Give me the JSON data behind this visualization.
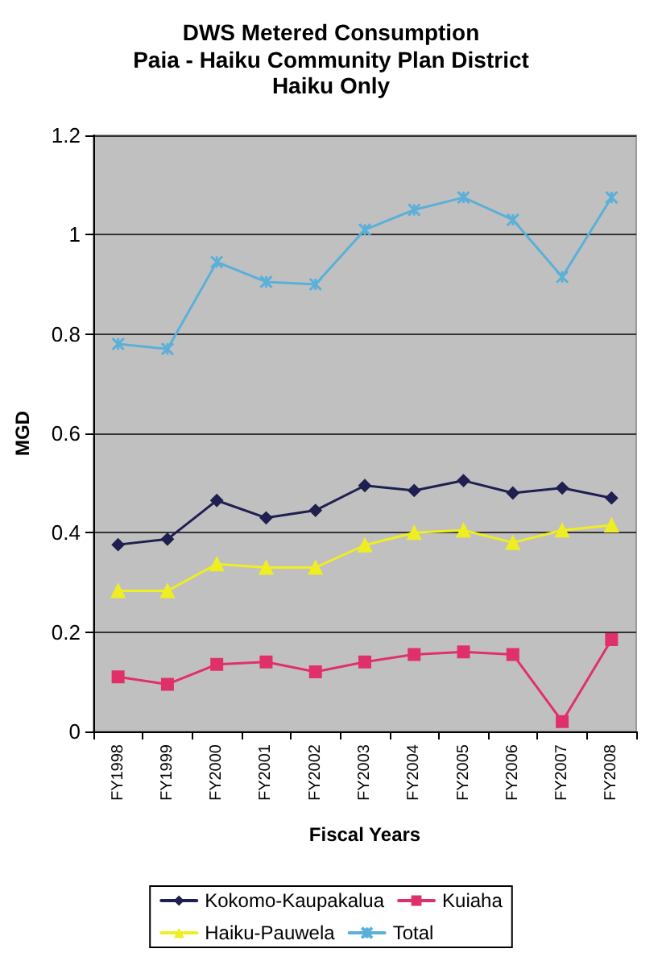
{
  "chart_data": {
    "type": "line",
    "title": "DWS Metered Consumption",
    "subtitle": "Paia - Haiku Community Plan District\nHaiku Only",
    "xlabel": "Fiscal Years",
    "ylabel": "MGD",
    "categories": [
      "FY1998",
      "FY1999",
      "FY2000",
      "FY2001",
      "FY2002",
      "FY2003",
      "FY2004",
      "FY2005",
      "FY2006",
      "FY2007",
      "FY2008"
    ],
    "series": [
      {
        "name": "Kokomo-Kaupakalua",
        "color": "#1f1f50",
        "marker": "diamond",
        "values": [
          0.376,
          0.387,
          0.465,
          0.43,
          0.445,
          0.495,
          0.485,
          0.505,
          0.48,
          0.49,
          0.47
        ]
      },
      {
        "name": "Kuiaha",
        "color": "#e0306a",
        "marker": "square",
        "values": [
          0.11,
          0.095,
          0.135,
          0.14,
          0.12,
          0.14,
          0.155,
          0.16,
          0.155,
          0.02,
          0.185
        ]
      },
      {
        "name": "Haiku-Pauwela",
        "color": "#eeee22",
        "marker": "triangle",
        "values": [
          0.283,
          0.283,
          0.337,
          0.33,
          0.33,
          0.375,
          0.4,
          0.405,
          0.38,
          0.405,
          0.415
        ]
      },
      {
        "name": "Total",
        "color": "#5ab0d8",
        "marker": "cross",
        "values": [
          0.78,
          0.77,
          0.945,
          0.905,
          0.9,
          1.01,
          1.05,
          1.075,
          1.03,
          0.915,
          1.075
        ]
      }
    ],
    "ylim": [
      0,
      1.2
    ],
    "yticks": [
      0,
      0.2,
      0.4,
      0.6,
      0.8,
      1,
      1.2
    ],
    "grid": "y",
    "legend": "bottom",
    "line_style": "solid"
  }
}
